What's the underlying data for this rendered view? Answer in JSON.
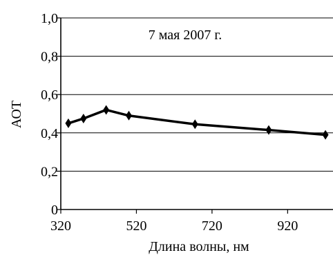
{
  "chart_data": {
    "type": "line",
    "annotation": "7 мая 2007 г.",
    "xlabel": "Длина волны, нм",
    "ylabel": "АОТ",
    "xlim": [
      320,
      1040
    ],
    "ylim": [
      0,
      1.0
    ],
    "x_ticks": [
      320,
      520,
      720,
      920
    ],
    "x_tick_labels": [
      "320",
      "520",
      "720",
      "920"
    ],
    "y_ticks": [
      0,
      0.2,
      0.4,
      0.6,
      0.8,
      1.0
    ],
    "y_tick_labels": [
      "0",
      "0,2",
      "0,4",
      "0,6",
      "0,8",
      "1,0"
    ],
    "grid": "horizontal",
    "marker": "diamond",
    "series": [
      {
        "x": [
          340,
          380,
          440,
          500,
          675,
          870,
          1020
        ],
        "y": [
          0.45,
          0.475,
          0.52,
          0.49,
          0.445,
          0.415,
          0.39
        ]
      }
    ]
  }
}
